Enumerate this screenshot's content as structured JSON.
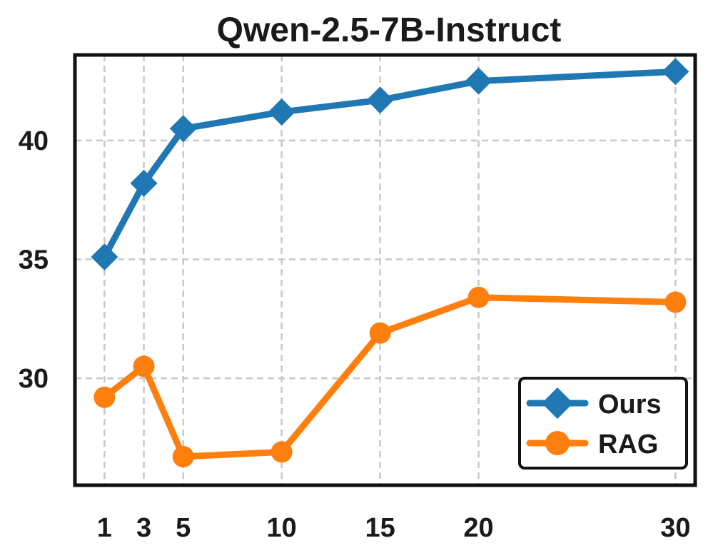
{
  "chart_data": {
    "type": "line",
    "title": "Qwen-2.5-7B-Instruct",
    "xlabel": "",
    "ylabel": "",
    "x": [
      1,
      3,
      5,
      10,
      15,
      20,
      30
    ],
    "xlim": [
      -0.5,
      31
    ],
    "ylim": [
      25.5,
      43.6
    ],
    "yticks": [
      30,
      35,
      40
    ],
    "grid": true,
    "legend_position": "bottom-right",
    "series": [
      {
        "name": "Ours",
        "color": "#1f77b4",
        "marker": "diamond",
        "values": [
          35.1,
          38.2,
          40.5,
          41.2,
          41.7,
          42.5,
          42.9
        ]
      },
      {
        "name": "RAG",
        "color": "#ff7f0e",
        "marker": "circle",
        "values": [
          29.2,
          30.5,
          26.7,
          26.9,
          31.9,
          33.4,
          33.2
        ]
      }
    ]
  }
}
